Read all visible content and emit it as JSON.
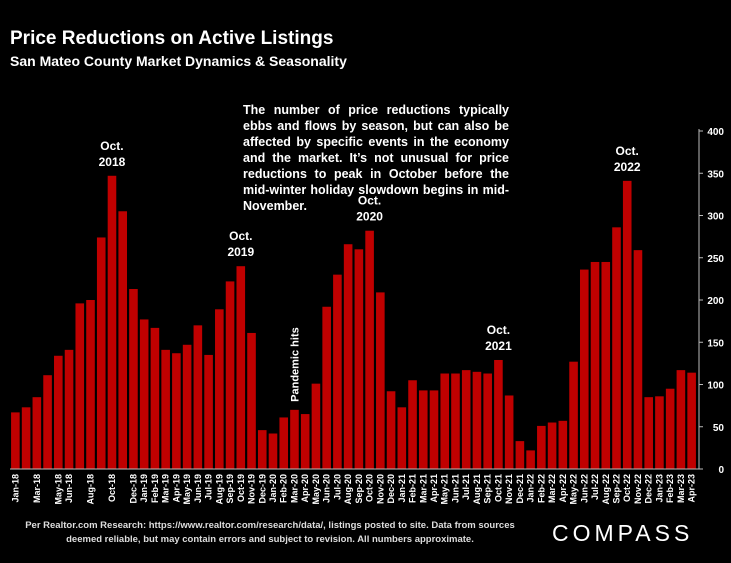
{
  "title": "Price Reductions on Active Listings",
  "subtitle": "San Mateo County Market Dynamics & Seasonality",
  "annotation": "The number of price reductions typically ebbs and flows by season, but can also be affected by specific events in the economy and the market. It’s not unusual for price reductions to peak in October before the mid-winter holiday slowdown begins in mid-November.",
  "footer": "Per Realtor.com Research:  https://www.realtor.com/research/data/, listings posted to site. Data from sources deemed reliable, but may contain errors and subject to revision. All numbers approximate.",
  "logo": "COMPASS",
  "chart_data": {
    "type": "bar",
    "color": "#c00000",
    "ylim": [
      0,
      400
    ],
    "yticks": [
      0,
      50,
      100,
      150,
      200,
      250,
      300,
      350,
      400
    ],
    "grid": false,
    "categories": [
      "Jan-18",
      "Feb-18",
      "Mar-18",
      "Apr-18",
      "May-18",
      "Jun-18",
      "Jul-18",
      "Aug-18",
      "Sep-18",
      "Oct-18",
      "Nov-18",
      "Dec-18",
      "Jan-19",
      "Feb-19",
      "Mar-19",
      "Apr-19",
      "May-19",
      "Jun-19",
      "Jul-19",
      "Aug-19",
      "Sep-19",
      "Oct-19",
      "Nov-19",
      "Dec-19",
      "Jan-20",
      "Feb-20",
      "Mar-20",
      "Apr-20",
      "May-20",
      "Jun-20",
      "Jul-20",
      "Aug-20",
      "Sep-20",
      "Oct-20",
      "Nov-20",
      "Dec-20",
      "Jan-21",
      "Feb-21",
      "Mar-21",
      "Apr-21",
      "May-21",
      "Jun-21",
      "Jul-21",
      "Aug-21",
      "Sep-21",
      "Oct-21",
      "Nov-21",
      "Dec-21",
      "Jan-22",
      "Feb-22",
      "Mar-22",
      "Apr-22",
      "May-22",
      "Jun-22",
      "Jul-22",
      "Aug-22",
      "Sep-22",
      "Oct-22",
      "Nov-22",
      "Dec-22",
      "Jan-23",
      "Feb-23",
      "Mar-23",
      "Apr-23"
    ],
    "values": [
      67,
      73,
      85,
      111,
      134,
      141,
      196,
      200,
      274,
      347,
      305,
      213,
      177,
      167,
      141,
      137,
      147,
      170,
      135,
      189,
      222,
      240,
      161,
      46,
      42,
      61,
      70,
      65,
      101,
      192,
      230,
      266,
      260,
      282,
      209,
      92,
      73,
      105,
      93,
      93,
      113,
      113,
      117,
      115,
      113,
      129,
      87,
      33,
      22,
      51,
      55,
      57,
      127,
      236,
      245,
      245,
      286,
      341,
      259,
      85,
      86,
      95,
      117,
      114
    ],
    "labeled_categories": [
      "Jan-18",
      "Mar-18",
      "May-18",
      "Jun-18",
      "Aug-18",
      "Oct-18",
      "Dec-18",
      "Jan-19",
      "Feb-19",
      "Mar-19",
      "Apr-19",
      "May-19",
      "Jun-19",
      "Jul-19",
      "Aug-19",
      "Sep-19",
      "Oct-19",
      "Nov-19",
      "Dec-19",
      "Jan-20",
      "Feb-20",
      "Mar-20",
      "Apr-20",
      "May-20",
      "Jun-20",
      "Jul-20",
      "Aug-20",
      "Sep-20",
      "Oct-20",
      "Nov-20",
      "Dec-20",
      "Jan-21",
      "Feb-21",
      "Mar-21",
      "Apr-21",
      "May-21",
      "Jun-21",
      "Jul-21",
      "Aug-21",
      "Sep-21",
      "Oct-21",
      "Nov-21",
      "Dec-21",
      "Jan-22",
      "Feb-22",
      "Mar-22",
      "Apr-22",
      "May-22",
      "Jun-22",
      "Jul-22",
      "Aug-22",
      "Sep-22",
      "Oct-22",
      "Nov-22",
      "Dec-22",
      "Jan-23",
      "Feb-23",
      "Mar-23",
      "Apr-23"
    ],
    "annotations": [
      {
        "category": "Oct-18",
        "lines": [
          "Oct.",
          "2018"
        ]
      },
      {
        "category": "Oct-19",
        "lines": [
          "Oct.",
          "2019"
        ]
      },
      {
        "category": "Oct-20",
        "lines": [
          "Oct.",
          "2020"
        ]
      },
      {
        "category": "Oct-21",
        "lines": [
          "Oct.",
          "2021"
        ]
      },
      {
        "category": "Oct-22",
        "lines": [
          "Oct.",
          "2022"
        ]
      },
      {
        "category": "Mar-20",
        "text": "Pandemic hits",
        "rotated": true
      }
    ]
  }
}
